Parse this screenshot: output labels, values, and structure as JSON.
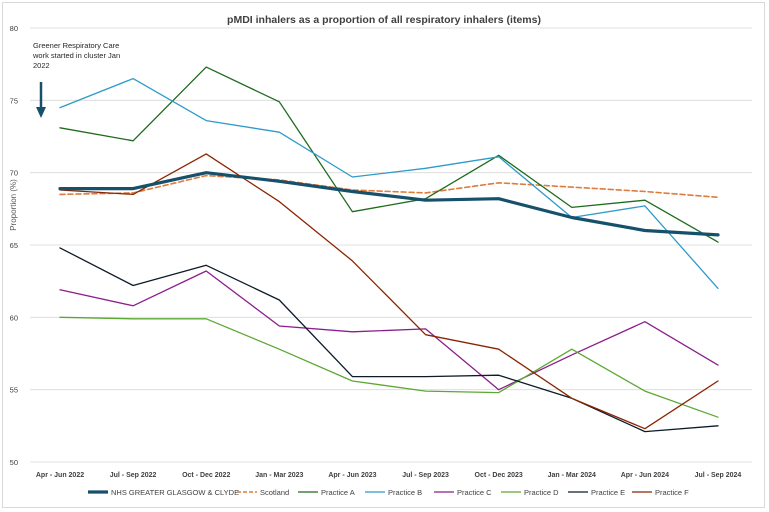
{
  "chart_data": {
    "type": "line",
    "title": "pMDI inhalers as a proportion of all respiratory inhalers (items)",
    "xlabel": "",
    "ylabel": "Proportion (%)",
    "ylim": [
      50,
      80
    ],
    "yticks": [
      50,
      55,
      60,
      65,
      70,
      75,
      80
    ],
    "grid": true,
    "legend_position": "bottom",
    "categories": [
      "Apr - Jun 2022",
      "Jul - Sep 2022",
      "Oct - Dec 2022",
      "Jan - Mar 2023",
      "Apr - Jun 2023",
      "Jul - Sep 2023",
      "Oct - Dec 2023",
      "Jan - Mar 2024",
      "Apr - Jun 2024",
      "Jul - Sep 2024"
    ],
    "annotation": {
      "lines": [
        "Greener Respiratory Care",
        "work started in cluster Jan",
        "2022"
      ]
    },
    "series": [
      {
        "name": "NHS GREATER GLASGOW & CLYDE",
        "color": "#17506b",
        "style": "solid-thick",
        "values": [
          68.9,
          68.9,
          70.0,
          69.4,
          68.7,
          68.1,
          68.2,
          66.9,
          66.0,
          65.7
        ]
      },
      {
        "name": "Scotland",
        "color": "#e07b39",
        "style": "dashed",
        "values": [
          68.5,
          68.6,
          69.8,
          69.5,
          68.8,
          68.6,
          69.3,
          69.0,
          68.7,
          68.3
        ]
      },
      {
        "name": "Practice A",
        "color": "#1e6b1e",
        "style": "solid",
        "values": [
          73.1,
          72.2,
          77.3,
          74.9,
          67.3,
          68.2,
          71.2,
          67.6,
          68.1,
          65.2
        ]
      },
      {
        "name": "Practice B",
        "color": "#2e9bc9",
        "style": "solid",
        "values": [
          74.5,
          76.5,
          73.6,
          72.8,
          69.7,
          70.3,
          71.1,
          66.9,
          67.7,
          62.0
        ]
      },
      {
        "name": "Practice C",
        "color": "#8b1e8b",
        "style": "solid",
        "values": [
          61.9,
          60.8,
          63.2,
          59.4,
          59.0,
          59.2,
          55.0,
          57.4,
          59.7,
          56.7
        ]
      },
      {
        "name": "Practice D",
        "color": "#5ca832",
        "style": "solid",
        "values": [
          60.0,
          59.9,
          59.9,
          57.8,
          55.6,
          54.9,
          54.8,
          57.8,
          54.9,
          53.1
        ]
      },
      {
        "name": "Practice E",
        "color": "#0d1b2a",
        "style": "solid",
        "values": [
          64.8,
          62.2,
          63.6,
          61.2,
          55.9,
          55.9,
          56.0,
          54.4,
          52.1,
          52.5
        ]
      },
      {
        "name": "Practice F",
        "color": "#8b2500",
        "style": "solid",
        "values": [
          68.8,
          68.5,
          71.3,
          68.0,
          63.9,
          58.8,
          57.8,
          54.4,
          52.3,
          55.6
        ]
      }
    ]
  }
}
